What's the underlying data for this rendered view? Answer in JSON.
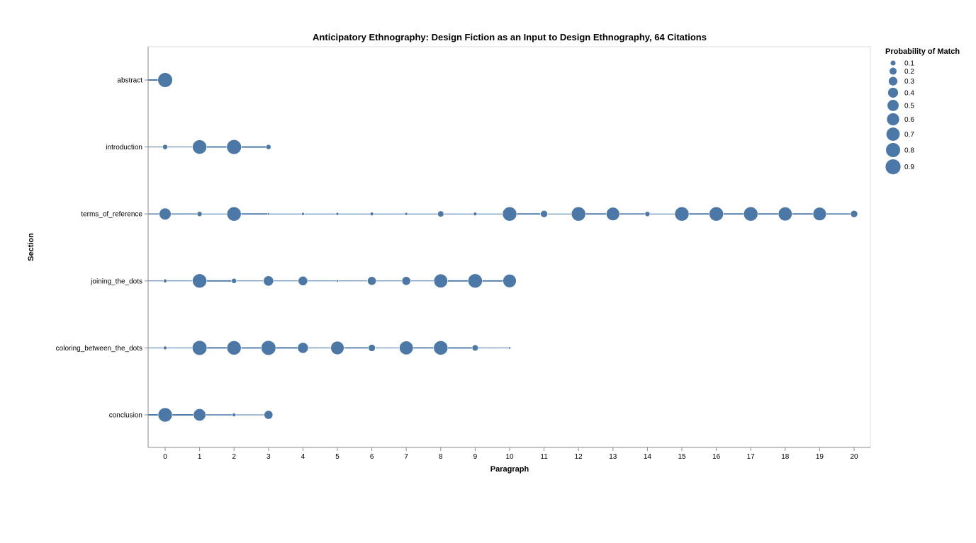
{
  "chart_data": {
    "type": "scatter",
    "title": "Anticipatory Ethnography: Design Fiction as an Input to Design Ethnography, 64 Citations",
    "xlabel": "Paragraph",
    "ylabel": "Section",
    "x_ticks": [
      0,
      1,
      2,
      3,
      4,
      5,
      6,
      7,
      8,
      9,
      10,
      11,
      12,
      13,
      14,
      15,
      16,
      17,
      18,
      19,
      20
    ],
    "xlim": [
      -0.5,
      20.5
    ],
    "categories": [
      "abstract",
      "introduction",
      "terms_of_reference",
      "joining_the_dots",
      "coloring_between_the_dots",
      "conclusion"
    ],
    "grid": false,
    "color": "#4c78a8",
    "legend": {
      "title": "Probability of Match",
      "placement": "top-right",
      "values": [
        0.1,
        0.2,
        0.3,
        0.4,
        0.5,
        0.6,
        0.7,
        0.8,
        0.9
      ],
      "labels": [
        "0.1",
        "0.2",
        "0.3",
        "0.4",
        "0.5",
        "0.6",
        "0.7",
        "0.8",
        "0.9"
      ]
    },
    "series": [
      {
        "section": "abstract",
        "points": [
          [
            0,
            0.85
          ]
        ]
      },
      {
        "section": "introduction",
        "points": [
          [
            0,
            0.1
          ],
          [
            1,
            0.8
          ],
          [
            2,
            0.85
          ],
          [
            3,
            0.1
          ]
        ]
      },
      {
        "section": "terms_of_reference",
        "points": [
          [
            0,
            0.55
          ],
          [
            1,
            0.1
          ],
          [
            2,
            0.8
          ],
          [
            3,
            0.02
          ],
          [
            4,
            0.03
          ],
          [
            5,
            0.03
          ],
          [
            6,
            0.05
          ],
          [
            7,
            0.03
          ],
          [
            8,
            0.15
          ],
          [
            9,
            0.05
          ],
          [
            10,
            0.8
          ],
          [
            11,
            0.2
          ],
          [
            12,
            0.8
          ],
          [
            13,
            0.7
          ],
          [
            14,
            0.1
          ],
          [
            15,
            0.8
          ],
          [
            16,
            0.8
          ],
          [
            17,
            0.8
          ],
          [
            18,
            0.75
          ],
          [
            19,
            0.7
          ],
          [
            20,
            0.2
          ]
        ]
      },
      {
        "section": "joining_the_dots",
        "points": [
          [
            0,
            0.05
          ],
          [
            1,
            0.8
          ],
          [
            2,
            0.1
          ],
          [
            3,
            0.4
          ],
          [
            4,
            0.35
          ],
          [
            5,
            0.02
          ],
          [
            6,
            0.3
          ],
          [
            7,
            0.3
          ],
          [
            8,
            0.75
          ],
          [
            9,
            0.8
          ],
          [
            10,
            0.7
          ]
        ]
      },
      {
        "section": "coloring_between_the_dots",
        "points": [
          [
            0,
            0.05
          ],
          [
            1,
            0.85
          ],
          [
            2,
            0.8
          ],
          [
            3,
            0.85
          ],
          [
            4,
            0.45
          ],
          [
            5,
            0.7
          ],
          [
            6,
            0.2
          ],
          [
            7,
            0.75
          ],
          [
            8,
            0.8
          ],
          [
            9,
            0.15
          ],
          [
            10,
            0.02
          ]
        ]
      },
      {
        "section": "conclusion",
        "points": [
          [
            0,
            0.8
          ],
          [
            1,
            0.6
          ],
          [
            2,
            0.05
          ],
          [
            3,
            0.3
          ]
        ]
      }
    ]
  }
}
